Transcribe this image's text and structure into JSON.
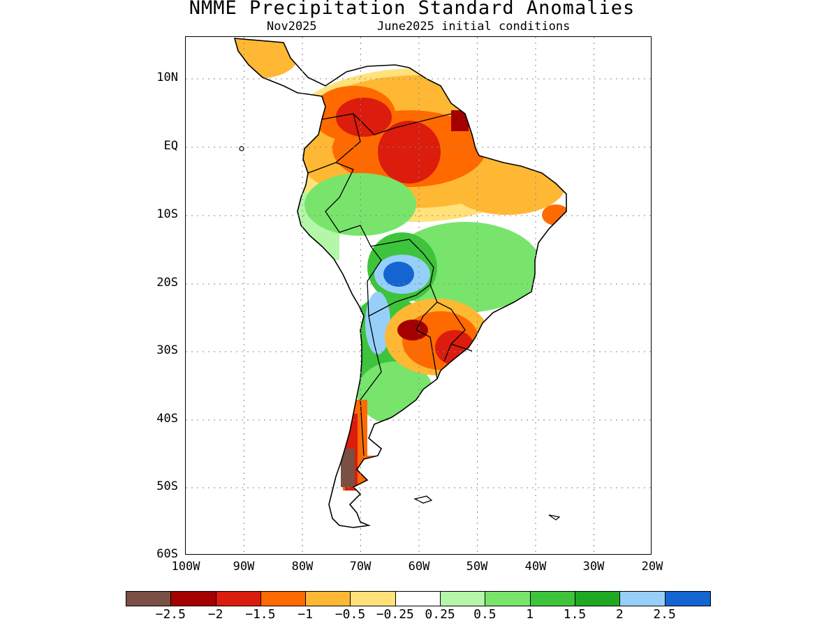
{
  "title": "NMME Precipitation Standard Anomalies",
  "subtitle_left": "Nov2025",
  "subtitle_right": "June2025 initial conditions",
  "map": {
    "region": "South America",
    "lon_range": [
      -100,
      -20
    ],
    "lat_range": [
      -60,
      15
    ],
    "grid": "dotted",
    "y_ticks": [
      "10N",
      "EQ",
      "10S",
      "20S",
      "30S",
      "40S",
      "50S",
      "60S"
    ],
    "x_ticks": [
      "100W",
      "90W",
      "80W",
      "70W",
      "60W",
      "50W",
      "40W",
      "30W",
      "20W"
    ],
    "anomaly_regions": [
      {
        "name": "northern-south-america-dry",
        "category": "-1.5"
      },
      {
        "name": "amazon-dry",
        "category": "-1"
      },
      {
        "name": "northeast-brazil-dry",
        "category": "-0.5"
      },
      {
        "name": "central-brazil-wet",
        "category": "1"
      },
      {
        "name": "bolivia-pantanal-wet",
        "category": "2.5"
      },
      {
        "name": "northern-argentina-wet",
        "category": "2"
      },
      {
        "name": "paraguay-southern-brazil-dry",
        "category": "-2"
      },
      {
        "name": "central-argentina-wet",
        "category": "1"
      },
      {
        "name": "southern-chile-dry",
        "category": "-2.5"
      }
    ]
  },
  "colorbar": {
    "colors": [
      "#7a4f44",
      "#a50000",
      "#dc1c0c",
      "#ff6a00",
      "#ffb833",
      "#ffe27a",
      "#ffffff",
      "#b4f7a9",
      "#78e46c",
      "#3ec43c",
      "#20a822",
      "#96d0fa",
      "#1464d2"
    ],
    "labels": [
      "-2.5",
      "-2",
      "-1.5",
      "-1",
      "-0.5",
      "-0.25",
      "0.25",
      "0.5",
      "1",
      "1.5",
      "2",
      "2.5"
    ]
  }
}
